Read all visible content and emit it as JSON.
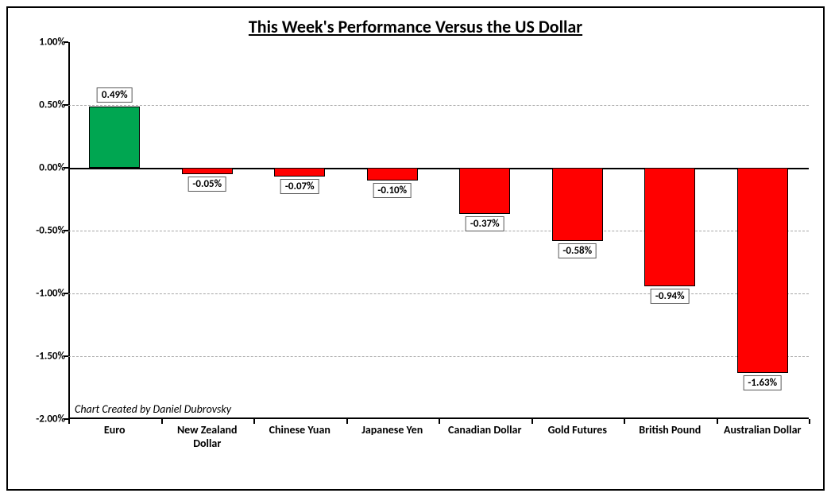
{
  "chart": {
    "type": "bar",
    "title": "This Week's Performance Versus the US Dollar",
    "title_fontsize": 22,
    "credit": "Chart Created by Daniel Dubrovsky",
    "background_color": "#ffffff",
    "border_color": "#000000",
    "grid_color": "#a6a6a6",
    "zero_line_color": "#000000",
    "positive_color": "#00a651",
    "negative_color": "#ff0000",
    "bar_border_color": "#000000",
    "label_box_border": "#595959",
    "label_fontsize": 13,
    "axis_fontsize": 13,
    "xlabel_fontsize": 14,
    "ylim": [
      -2.0,
      1.0
    ],
    "ytick_step": 0.5,
    "yticks": [
      "1.00%",
      "0.50%",
      "0.00%",
      "-0.50%",
      "-1.00%",
      "-1.50%",
      "-2.00%"
    ],
    "categories": [
      "Euro",
      "New Zealand Dollar",
      "Chinese Yuan",
      "Japanese Yen",
      "Canadian Dollar",
      "Gold Futures",
      "British Pound",
      "Australian Dollar"
    ],
    "values": [
      0.49,
      -0.05,
      -0.07,
      -0.1,
      -0.37,
      -0.58,
      -0.94,
      -1.63
    ],
    "value_labels": [
      "0.49%",
      "-0.05%",
      "-0.07%",
      "-0.10%",
      "-0.37%",
      "-0.58%",
      "-0.94%",
      "-1.63%"
    ],
    "bar_width_ratio": 0.55
  }
}
